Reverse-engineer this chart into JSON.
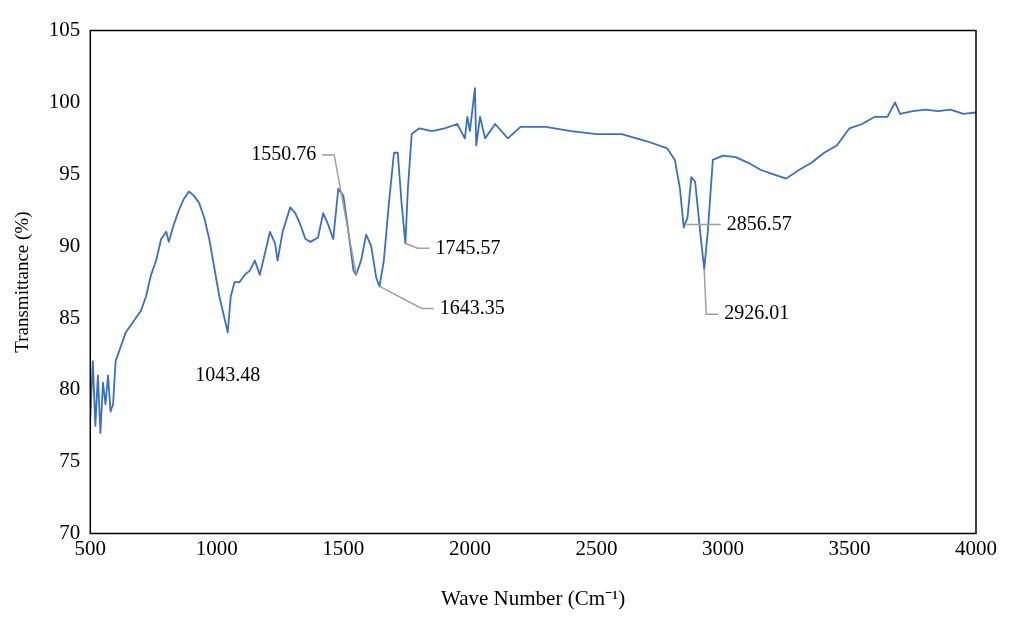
{
  "chart_data": {
    "type": "line",
    "xlabel": "Wave Number (Cm⁻¹)",
    "ylabel": "Transmittance (%)",
    "xlim": [
      500,
      4000
    ],
    "xticks": [
      500,
      1000,
      1500,
      2000,
      2500,
      3000,
      3500,
      4000
    ],
    "ylim": [
      70,
      105
    ],
    "yticks": [
      70,
      75,
      80,
      85,
      90,
      95,
      100,
      105
    ],
    "grid": false,
    "legend": false,
    "marker": "none",
    "line_style": "solid",
    "series": [
      {
        "color": "#3a70c0",
        "x": [
          500,
          510,
          520,
          530,
          540,
          550,
          560,
          570,
          580,
          590,
          600,
          620,
          640,
          660,
          680,
          700,
          720,
          740,
          760,
          780,
          800,
          810,
          830,
          850,
          870,
          890,
          910,
          930,
          950,
          970,
          990,
          1010,
          1030,
          1043,
          1055,
          1070,
          1090,
          1110,
          1130,
          1150,
          1170,
          1190,
          1210,
          1230,
          1240,
          1260,
          1290,
          1310,
          1330,
          1350,
          1370,
          1400,
          1420,
          1440,
          1460,
          1480,
          1500,
          1520,
          1540,
          1550,
          1570,
          1590,
          1610,
          1630,
          1643,
          1660,
          1680,
          1700,
          1715,
          1730,
          1745,
          1755,
          1770,
          1800,
          1850,
          1900,
          1950,
          1980,
          1990,
          2000,
          2020,
          2025,
          2040,
          2060,
          2100,
          2150,
          2200,
          2300,
          2400,
          2500,
          2600,
          2700,
          2780,
          2810,
          2830,
          2845,
          2860,
          2875,
          2890,
          2910,
          2926,
          2940,
          2960,
          3000,
          3050,
          3100,
          3150,
          3200,
          3250,
          3300,
          3350,
          3400,
          3450,
          3500,
          3550,
          3600,
          3650,
          3680,
          3700,
          3750,
          3800,
          3850,
          3900,
          3950,
          4000
        ],
        "values": [
          78,
          82,
          77.5,
          81,
          77,
          80.5,
          79,
          81,
          78.5,
          79,
          82,
          83,
          84,
          84.5,
          85,
          85.5,
          86.5,
          88,
          89,
          90.5,
          91,
          90.3,
          91.5,
          92.5,
          93.3,
          93.8,
          93.5,
          93,
          92,
          90.5,
          88.5,
          86.5,
          85,
          84,
          86.5,
          87.5,
          87.5,
          88,
          88.3,
          89,
          88,
          89.5,
          91,
          90.2,
          89,
          91,
          92.7,
          92.3,
          91.5,
          90.5,
          90.3,
          90.6,
          92.3,
          91.5,
          90.5,
          94,
          93.5,
          91,
          88.3,
          88,
          89,
          90.8,
          90,
          87.8,
          87.2,
          89,
          93,
          96.5,
          96.5,
          93,
          90.2,
          94,
          97.8,
          98.2,
          98,
          98.2,
          98.5,
          97.5,
          99,
          98,
          101,
          97,
          99,
          97.5,
          98.5,
          97.5,
          98.3,
          98.3,
          98,
          97.8,
          97.8,
          97.3,
          96.8,
          96,
          94,
          91.3,
          92,
          94.8,
          94.5,
          91,
          88.4,
          91,
          96,
          96.3,
          96.2,
          95.8,
          95.3,
          95,
          94.7,
          95.3,
          95.8,
          96.5,
          97,
          98.2,
          98.5,
          99,
          99,
          100,
          99.2,
          99.4,
          99.5,
          99.4,
          99.5,
          99.2,
          99.3
        ]
      }
    ],
    "annotations": [
      {
        "text": "1043.48",
        "x": 1043.48,
        "y": 83.8
      },
      {
        "text": "1550.76",
        "x": 1550.76,
        "y": 88
      },
      {
        "text": "1643.35",
        "x": 1643.35,
        "y": 87.2
      },
      {
        "text": "1745.57",
        "x": 1745.57,
        "y": 90.2
      },
      {
        "text": "2856.57",
        "x": 2856.57,
        "y": 91.5
      },
      {
        "text": "2926.01",
        "x": 2926.01,
        "y": 88.4
      }
    ]
  }
}
